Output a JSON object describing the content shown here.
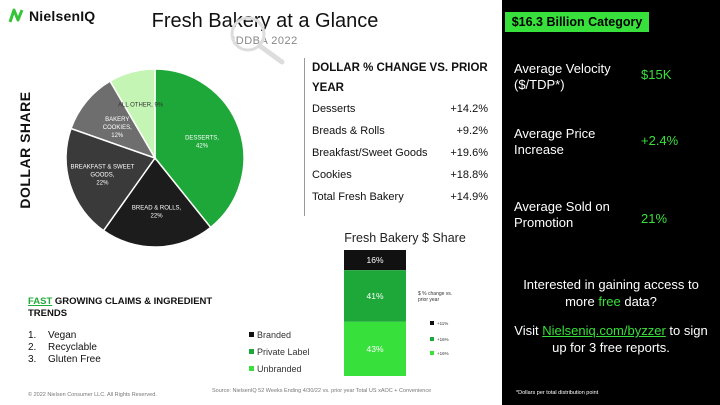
{
  "brand": {
    "name": "NielsenIQ",
    "icon": "nielseniq-logo-icon"
  },
  "header": {
    "title": "Fresh Bakery at a Glance",
    "subtitle": "IDDBA 2022"
  },
  "dollar_share_label": "DOLLAR SHARE",
  "change_section": {
    "title": "DOLLAR % CHANGE VS. PRIOR YEAR",
    "rows": [
      {
        "label": "Desserts",
        "value": "+14.2%"
      },
      {
        "label": "Breads & Rolls",
        "value": "+9.2%"
      },
      {
        "label": "Breakfast/Sweet Goods",
        "value": "+19.6%"
      },
      {
        "label": "Cookies",
        "value": "+18.8%"
      },
      {
        "label": "Total Fresh Bakery",
        "value": "+14.9%"
      }
    ]
  },
  "claims": {
    "title_highlight": "FAST",
    "title_rest": " GROWING CLAIMS & INGREDIENT TRENDS",
    "items": [
      {
        "num": "1.",
        "label": "Vegan"
      },
      {
        "num": "2.",
        "label": "Recyclable"
      },
      {
        "num": "3.",
        "label": "Gluten Free"
      }
    ]
  },
  "bar_section": {
    "title": "Fresh Bakery $ Share",
    "side_label": "$ % change vs. prior year"
  },
  "footer": {
    "copyright": "© 2022 Nielsen Consumer LLC. All Rights Reserved.",
    "source": "Source: NielsenIQ 52 Weeks Ending 4/30/22 vs. prior year Total US xAOC + Convenience"
  },
  "right_panel": {
    "header": "$16.3 Billion Category",
    "stats": [
      {
        "label": "Average Velocity ($/TDP*)",
        "value": "$15K"
      },
      {
        "label": "Average Price Increase",
        "value": "+2.4%"
      },
      {
        "label": "Average Sold on Promotion",
        "value": "21%"
      }
    ],
    "cta_part1": "Interested in gaining access to more ",
    "cta_free": "free",
    "cta_part2": " data?",
    "visit_prefix": "Visit ",
    "visit_link": "Nielseniq.com/byzzer",
    "visit_suffix": " to sign up for 3 free reports.",
    "footnote": "*Dollars per total distribution point"
  },
  "colors": {
    "accent_green": "#37e03a",
    "panel_bg": "#000000"
  },
  "chart_data": [
    {
      "type": "pie",
      "slices": [
        {
          "label": "DESSERTS, 42%",
          "value": 42,
          "color": "#1ea83a",
          "text_color": "#ffffff"
        },
        {
          "label": "BREAD & ROLLS, 22%",
          "value": 22,
          "color": "#1c1c1c",
          "text_color": "#ffffff"
        },
        {
          "label": "BREAKFAST & SWEET GOODS, 22%",
          "value": 22,
          "color": "#3a3a3a",
          "text_color": "#ffffff"
        },
        {
          "label": "BAKERY COOKIES, 12%",
          "value": 12,
          "color": "#6e6e6e",
          "text_color": "#ffffff"
        },
        {
          "label": "ALL OTHER, 9%",
          "value": 9,
          "color": "#c4f5b4",
          "text_color": "#333333"
        }
      ]
    },
    {
      "type": "bar",
      "stacked": true,
      "title": "Fresh Bakery $ Share",
      "series": [
        {
          "name": "Branded",
          "value": 16,
          "label": "16%",
          "color": "#111111",
          "change": "+11%"
        },
        {
          "name": "Private Label",
          "value": 41,
          "label": "41%",
          "color": "#1ea83a",
          "change": "+16%"
        },
        {
          "name": "Unbranded",
          "value": 43,
          "label": "43%",
          "color": "#37e03a",
          "change": "+16%"
        }
      ]
    }
  ]
}
